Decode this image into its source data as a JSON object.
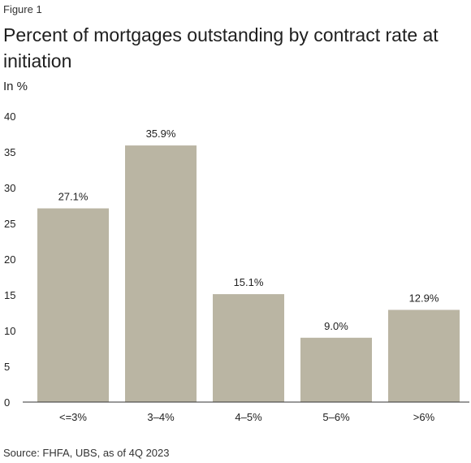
{
  "figure_label": "Figure 1",
  "title": "Percent of mortgages outstanding by contract rate at initiation",
  "unit_label": "In %",
  "source": "Source: FHFA, UBS, as of 4Q 2023",
  "colors": {
    "bar": "#bab5a3",
    "axis": "#333333",
    "text": "#222222"
  },
  "chart_data": {
    "type": "bar",
    "categories": [
      "<=3%",
      "3–4%",
      "4–5%",
      "5–6%",
      ">6%"
    ],
    "values": [
      27.1,
      35.9,
      15.1,
      9.0,
      12.9
    ],
    "data_labels": [
      "27.1%",
      "35.9%",
      "15.1%",
      "9.0%",
      "12.9%"
    ],
    "ylim": [
      0,
      40
    ],
    "yticks": [
      0,
      5,
      10,
      15,
      20,
      25,
      30,
      35,
      40
    ],
    "grid": false,
    "legend": "none"
  }
}
